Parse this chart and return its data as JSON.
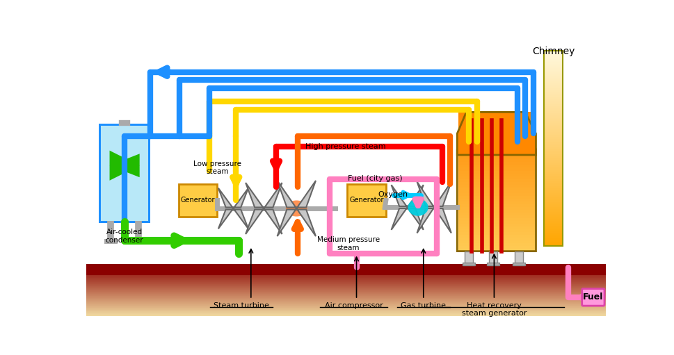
{
  "bg_color": "#ffffff",
  "chimney_label": "Chimney",
  "labels": {
    "air_cooled_condenser": "Air-cooled\ncondenser",
    "steam_turbine": "Steam turbine",
    "air_compressor": "Air compressor",
    "gas_turbine": "Gas turbine",
    "heat_recovery": "Heat recovery\nsteam generator",
    "generator1": "Generator",
    "generator2": "Generator",
    "low_pressure_steam": "Low pressure\nsteam",
    "high_pressure_steam": "High pressure steam",
    "fuel_city_gas": "Fuel (city gas)",
    "oxygen": "Oxygen",
    "medium_pressure_steam": "Medium pressure\nsteam",
    "fuel_label": "Fuel"
  },
  "colors": {
    "blue": "#1E90FF",
    "green": "#32CD00",
    "yellow": "#FFD700",
    "red": "#FF0000",
    "orange": "#FF6600",
    "pink": "#FF80C0",
    "cyan": "#00CCFF",
    "gray": "#AAAAAA",
    "orange_gen": "#FFA500",
    "dark_orange": "#CC6600"
  }
}
